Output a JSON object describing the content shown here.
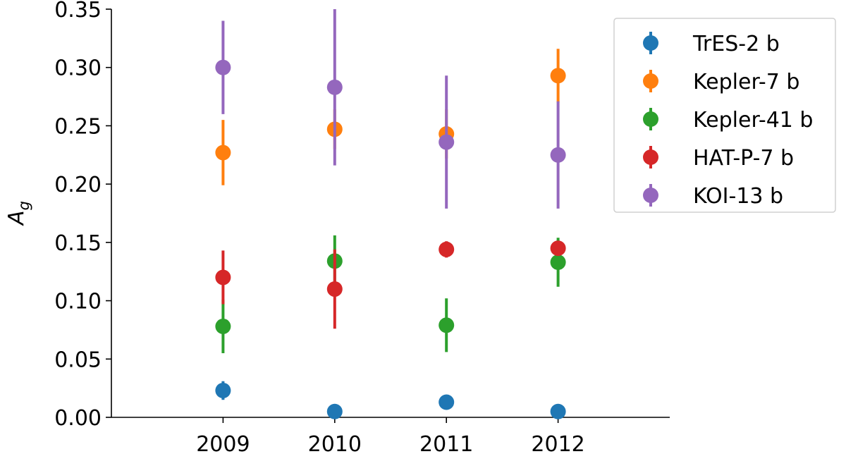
{
  "chart_data": {
    "type": "scatter",
    "title": "",
    "xlabel": "",
    "ylabel": "A_g",
    "ylabel_main": "A",
    "ylabel_sub": "g",
    "x": [
      2009,
      2010,
      2011,
      2012
    ],
    "x_tick_labels": [
      "2009",
      "2010",
      "2011",
      "2012"
    ],
    "xlim": [
      2008,
      2013
    ],
    "ylim": [
      0.0,
      0.35
    ],
    "y_ticks": [
      0.0,
      0.05,
      0.1,
      0.15,
      0.2,
      0.25,
      0.3,
      0.35
    ],
    "y_tick_labels": [
      "0.00",
      "0.05",
      "0.10",
      "0.15",
      "0.20",
      "0.25",
      "0.30",
      "0.35"
    ],
    "grid": false,
    "legend_position": "top-right",
    "series": [
      {
        "name": "TrES-2 b",
        "color": "#1f77b4",
        "values": [
          0.023,
          0.005,
          0.013,
          0.005
        ],
        "err": [
          0.008,
          0.001,
          0.002,
          0.001
        ]
      },
      {
        "name": "Kepler-7 b",
        "color": "#ff7f0e",
        "values": [
          0.227,
          0.247,
          0.243,
          0.293
        ],
        "err": [
          0.028,
          0.017,
          0.021,
          0.023
        ]
      },
      {
        "name": "Kepler-41 b",
        "color": "#2ca02c",
        "values": [
          0.078,
          0.134,
          0.079,
          0.133
        ],
        "err": [
          0.023,
          0.022,
          0.023,
          0.021
        ]
      },
      {
        "name": "HAT-P-7 b",
        "color": "#d62728",
        "values": [
          0.12,
          0.11,
          0.144,
          0.145
        ],
        "err": [
          0.023,
          0.034,
          0.007,
          0.005
        ]
      },
      {
        "name": "KOI-13 b",
        "color": "#9467bd",
        "values": [
          0.3,
          0.283,
          0.236,
          0.225
        ],
        "err": [
          0.04,
          0.067,
          0.057,
          0.046
        ]
      }
    ]
  }
}
